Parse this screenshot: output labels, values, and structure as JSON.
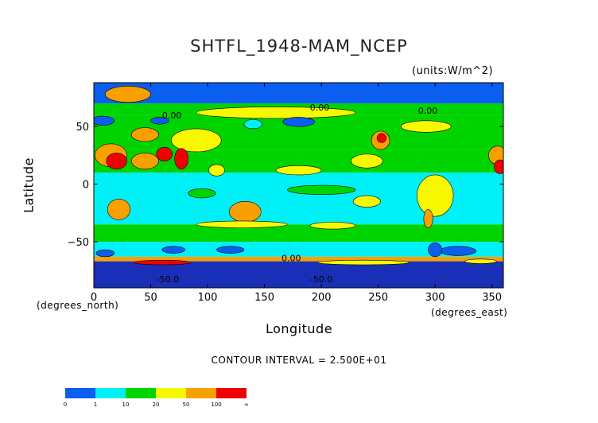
{
  "chart_data": {
    "type": "heatmap",
    "title": "SHTFL_1948-MAM_NCEP",
    "units": "(units:W/m^2)",
    "xlabel": "Longitude",
    "ylabel": "Latitude",
    "x_unit_note": "(degrees_north)",
    "x_unit_note_right": "(degrees_east)",
    "xlim": [
      0,
      360
    ],
    "ylim": [
      -90,
      90
    ],
    "x_ticks": [
      "0",
      "50",
      "100",
      "150",
      "200",
      "250",
      "300",
      "350"
    ],
    "x_tick_values": [
      0,
      50,
      100,
      150,
      200,
      250,
      300,
      350
    ],
    "y_ticks": [
      "50",
      "0",
      "−50"
    ],
    "y_tick_values": [
      50,
      0,
      -50
    ],
    "contour_interval": "CONTOUR INTERVAL = 2.500E+01",
    "contour_labels": [
      "0.00",
      "0.00",
      "0.00",
      "-50.0",
      "-50.0",
      "0.00"
    ],
    "legend": {
      "labels": [
        "0",
        "1",
        "10",
        "20",
        "50",
        "100",
        "∞"
      ],
      "colors": [
        "#0a5ef0",
        "#00f0f8",
        "#00d400",
        "#f8f800",
        "#f8a000",
        "#f00000"
      ]
    },
    "palette": {
      "neg": "#0a5ef0",
      "low": "#00f0f8",
      "mid": "#00d400",
      "warm": "#f8f800",
      "hot": "#f8a000",
      "max": "#f00000",
      "deep": "#1a2fb8"
    }
  }
}
